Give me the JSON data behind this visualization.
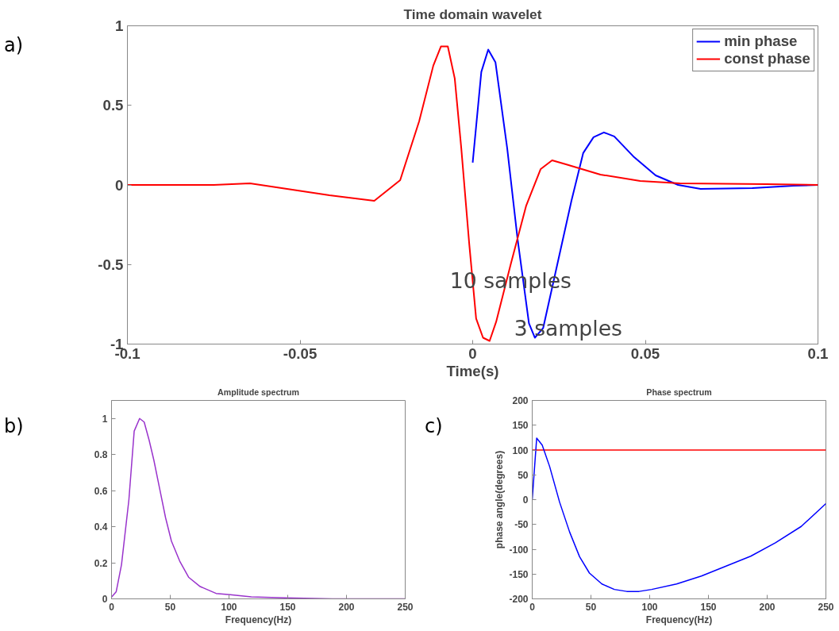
{
  "chart_data": [
    {
      "type": "line",
      "title": "Time domain wavelet",
      "xlabel": "Time(s)",
      "xlim": [
        -0.1,
        0.1
      ],
      "ylim": [
        -1,
        1
      ],
      "xticks": [
        -0.1,
        -0.05,
        0,
        0.05,
        0.1
      ],
      "yticks": [
        -1,
        -0.5,
        0,
        0.5,
        1
      ],
      "grid": false,
      "legend": "top right",
      "annotations": [
        "a)",
        {
          "text": "10 samples",
          "x": 0.011,
          "y": -0.6
        },
        "3 samples"
      ],
      "series": [
        {
          "name": "min phase",
          "color": "#0000ff",
          "x": [
            0,
            0.0025,
            0.0045,
            0.0066,
            0.01,
            0.013,
            0.0163,
            0.018,
            0.0204,
            0.0245,
            0.0286,
            0.032,
            0.035,
            0.038,
            0.041,
            0.0465,
            0.053,
            0.0595,
            0.066,
            0.081,
            0.093,
            0.1
          ],
          "values": [
            0.14,
            0.71,
            0.85,
            0.77,
            0.23,
            -0.34,
            -0.87,
            -0.96,
            -0.9,
            -0.5,
            -0.1,
            0.2,
            0.3,
            0.33,
            0.305,
            0.18,
            0.06,
            0.0,
            -0.025,
            -0.02,
            -0.005,
            0
          ]
        },
        {
          "name": "const phase",
          "color": "#ff0000",
          "x": [
            -0.1,
            -0.075,
            -0.0645,
            -0.0415,
            -0.0285,
            -0.021,
            -0.0155,
            -0.0114,
            -0.0092,
            -0.0072,
            -0.0052,
            -0.0033,
            -0.001,
            0.001,
            0.003,
            0.0049,
            0.0068,
            0.011,
            0.0155,
            0.0197,
            0.023,
            0.027,
            0.037,
            0.0485,
            0.06,
            0.085,
            0.1
          ],
          "values": [
            0,
            0,
            0.01,
            -0.065,
            -0.1,
            0.03,
            0.4,
            0.75,
            0.87,
            0.87,
            0.67,
            0.23,
            -0.37,
            -0.84,
            -0.96,
            -0.98,
            -0.86,
            -0.5,
            -0.13,
            0.1,
            0.155,
            0.13,
            0.065,
            0.025,
            0.01,
            0.005,
            0
          ]
        }
      ]
    },
    {
      "type": "line",
      "title": "Amplitude spectrum",
      "xlabel": "Frequency(Hz)",
      "xlim": [
        0,
        250
      ],
      "ylim": [
        0,
        1.1
      ],
      "xticks": [
        0,
        50,
        100,
        150,
        200,
        250
      ],
      "yticks": [
        0,
        0.2,
        0.4,
        0.6,
        0.8,
        1
      ],
      "grid": false,
      "annotations": [
        "b)"
      ],
      "series": [
        {
          "color": "#9933cc",
          "x": [
            0,
            4,
            8.5,
            14.8,
            19.3,
            23.9,
            27.8,
            32,
            36,
            41,
            46,
            51,
            58,
            65.6,
            75.5,
            89,
            101,
            119,
            148,
            188,
            250
          ],
          "values": [
            0.01,
            0.04,
            0.19,
            0.55,
            0.93,
            1.0,
            0.98,
            0.88,
            0.77,
            0.61,
            0.45,
            0.32,
            0.21,
            0.12,
            0.068,
            0.03,
            0.023,
            0.011,
            0.005,
            0,
            0
          ]
        }
      ]
    },
    {
      "type": "line",
      "title": "Phase spectrum",
      "xlabel": "Frequency(Hz)",
      "ylabel": "phase angle(degrees)",
      "xlim": [
        0,
        250
      ],
      "ylim": [
        -200,
        200
      ],
      "xticks": [
        0,
        50,
        100,
        150,
        200,
        250
      ],
      "yticks": [
        -200,
        -150,
        -100,
        -50,
        0,
        50,
        100,
        150,
        200
      ],
      "grid": false,
      "annotations": [
        "c)"
      ],
      "series": [
        {
          "color": "#ff0000",
          "x": [
            0,
            250
          ],
          "values": [
            100,
            100
          ]
        },
        {
          "color": "#0000ff",
          "x": [
            0,
            3.8,
            8.5,
            14.8,
            23.3,
            31.8,
            40.3,
            48.7,
            59.3,
            69.9,
            80.5,
            91,
            101.7,
            122.9,
            144,
            165,
            186,
            207,
            229,
            250
          ],
          "values": [
            0,
            124,
            110,
            67,
            -5,
            -65,
            -115,
            -148,
            -170,
            -181,
            -185,
            -185,
            -181,
            -170,
            -154,
            -134,
            -114,
            -87,
            -54,
            -8
          ]
        }
      ]
    }
  ]
}
